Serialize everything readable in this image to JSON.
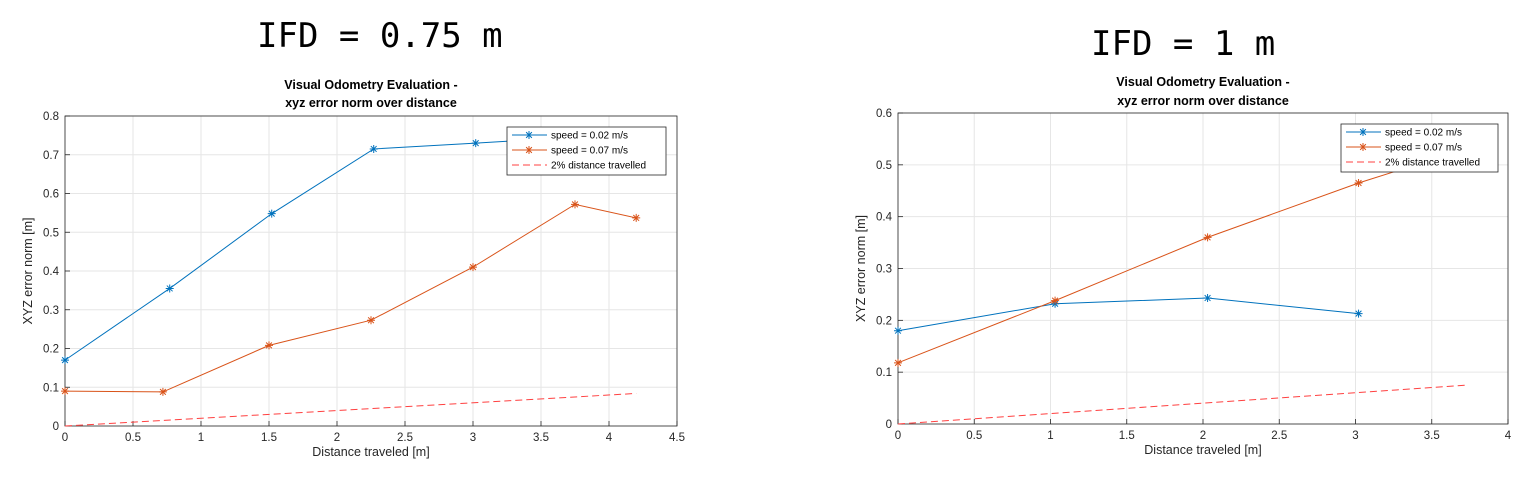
{
  "headings": [
    "IFD = 0.75 m",
    "IFD = 1 m"
  ],
  "chart_data": [
    {
      "type": "line",
      "title": "Visual Odometry Evaluation -\nxyz error norm over distance",
      "xlabel": "Distance traveled [m]",
      "ylabel": "XYZ error norm [m]",
      "xlim": [
        0,
        4.5
      ],
      "ylim": [
        0,
        0.8
      ],
      "xticks": [
        0,
        0.5,
        1,
        1.5,
        2,
        2.5,
        3,
        3.5,
        4,
        4.5
      ],
      "yticks": [
        0,
        0.1,
        0.2,
        0.3,
        0.4,
        0.5,
        0.6,
        0.7,
        0.8
      ],
      "grid": true,
      "legend_position": "top-right",
      "series": [
        {
          "name": "speed = 0.02 m/s",
          "color": "#0072BD",
          "style": "solid-star",
          "x": [
            0,
            0.77,
            1.52,
            2.27,
            3.02,
            3.4
          ],
          "y": [
            0.17,
            0.355,
            0.548,
            0.715,
            0.73,
            0.738
          ]
        },
        {
          "name": "speed = 0.07 m/s",
          "color": "#D95319",
          "style": "solid-star",
          "x": [
            0,
            0.72,
            1.5,
            2.25,
            3.0,
            3.75,
            4.2
          ],
          "y": [
            0.09,
            0.088,
            0.208,
            0.273,
            0.41,
            0.572,
            0.537
          ]
        },
        {
          "name": "2% distance travelled",
          "color": "#FF4040",
          "style": "dashed",
          "x": [
            0,
            4.2
          ],
          "y": [
            0,
            0.084
          ]
        }
      ]
    },
    {
      "type": "line",
      "title": "Visual Odometry Evaluation -\nxyz error norm over distance",
      "xlabel": "Distance traveled [m]",
      "ylabel": "XYZ error norm [m]",
      "xlim": [
        0,
        4
      ],
      "ylim": [
        0,
        0.6
      ],
      "xticks": [
        0,
        0.5,
        1,
        1.5,
        2,
        2.5,
        3,
        3.5,
        4
      ],
      "yticks": [
        0,
        0.1,
        0.2,
        0.3,
        0.4,
        0.5,
        0.6
      ],
      "grid": true,
      "legend_position": "top-right",
      "series": [
        {
          "name": "speed = 0.02 m/s",
          "color": "#0072BD",
          "style": "solid-star",
          "x": [
            0,
            1.03,
            2.03,
            3.02
          ],
          "y": [
            0.18,
            0.232,
            0.243,
            0.213
          ]
        },
        {
          "name": "speed = 0.07 m/s",
          "color": "#D95319",
          "style": "solid-star",
          "x": [
            0,
            1.03,
            2.03,
            3.02,
            3.45
          ],
          "y": [
            0.118,
            0.238,
            0.36,
            0.465,
            0.505
          ]
        },
        {
          "name": "2% distance travelled",
          "color": "#FF4040",
          "style": "dashed",
          "x": [
            0,
            3.73
          ],
          "y": [
            0,
            0.075
          ]
        }
      ]
    }
  ]
}
